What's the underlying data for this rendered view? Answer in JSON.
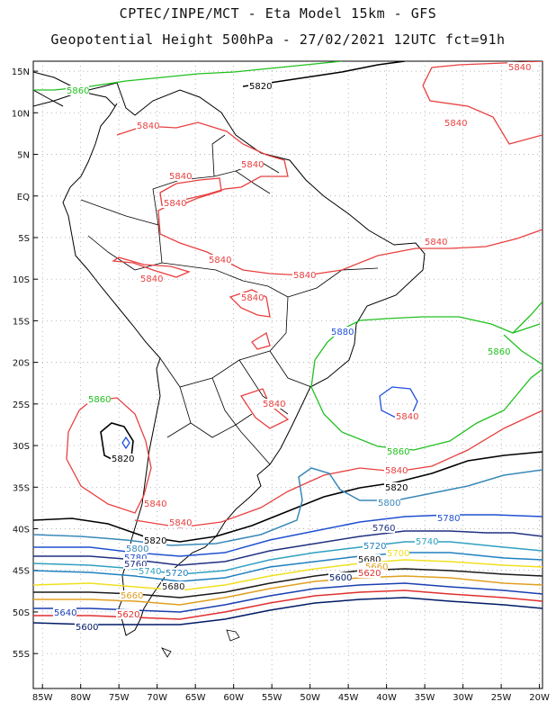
{
  "header": {
    "line1": "CPTEC/INPE/MCT -  Eta Model 15km - GFS",
    "line2": "Geopotential Height 500hPa - 27/02/2021 12UTC fct=91h"
  },
  "axes": {
    "lat_labels": [
      "15N",
      "10N",
      "5N",
      "EQ",
      "5S",
      "10S",
      "15S",
      "20S",
      "25S",
      "30S",
      "35S",
      "40S",
      "45S",
      "50S",
      "55S"
    ],
    "lat_values": [
      15,
      10,
      5,
      0,
      -5,
      -10,
      -15,
      -20,
      -25,
      -30,
      -35,
      -40,
      -45,
      -50,
      -55
    ],
    "lon_labels": [
      "85W",
      "80W",
      "75W",
      "70W",
      "65W",
      "60W",
      "55W",
      "50W",
      "45W",
      "40W",
      "35W",
      "30W",
      "25W",
      "20W"
    ],
    "lon_values": [
      -85,
      -80,
      -75,
      -70,
      -65,
      -60,
      -55,
      -50,
      -45,
      -40,
      -35,
      -30,
      -25,
      -20
    ],
    "grid": "dotted"
  },
  "contour_colors": {
    "5600": "#001a66",
    "5620": "#e03030",
    "5640": "#1a3fb0",
    "5660": "#e0a020",
    "5680": "#1a1a1a",
    "5700": "#f0e020",
    "5720": "#2080c0",
    "5740": "#30a0c0",
    "5760": "#203080",
    "5780": "#2050d0",
    "5800": "#3a88b8",
    "5820": "#000000",
    "5840": "#e84040",
    "5860": "#20c020",
    "5880": "#2050e0"
  },
  "contour_labels": [
    {
      "text": "5820",
      "color": "#000000"
    },
    {
      "text": "5860",
      "color": "#20c020"
    },
    {
      "text": "5840",
      "color": "#e84040"
    },
    {
      "text": "5840",
      "color": "#e84040"
    },
    {
      "text": "5840",
      "color": "#e84040"
    },
    {
      "text": "5840",
      "color": "#e84040"
    },
    {
      "text": "5840",
      "color": "#e84040"
    },
    {
      "text": "5840",
      "color": "#e84040"
    },
    {
      "text": "5840",
      "color": "#e84040"
    },
    {
      "text": "5840",
      "color": "#e84040"
    },
    {
      "text": "5840",
      "color": "#e84040"
    },
    {
      "text": "5840",
      "color": "#e84040"
    },
    {
      "text": "5840",
      "color": "#e84040"
    },
    {
      "text": "5840",
      "color": "#e84040"
    },
    {
      "text": "5860",
      "color": "#20c020"
    },
    {
      "text": "5860",
      "color": "#20c020"
    },
    {
      "text": "5880",
      "color": "#2050e0"
    },
    {
      "text": "5840",
      "color": "#e84040"
    },
    {
      "text": "5820",
      "color": "#000000"
    },
    {
      "text": "5860",
      "color": "#20c020"
    },
    {
      "text": "5840",
      "color": "#e84040"
    },
    {
      "text": "5820",
      "color": "#000000"
    },
    {
      "text": "5800",
      "color": "#3a88b8"
    },
    {
      "text": "5840",
      "color": "#e84040"
    },
    {
      "text": "5840",
      "color": "#e84040"
    },
    {
      "text": "5820",
      "color": "#000000"
    },
    {
      "text": "5780",
      "color": "#2050d0"
    },
    {
      "text": "5760",
      "color": "#203080"
    },
    {
      "text": "5740",
      "color": "#30a0c0"
    },
    {
      "text": "5720",
      "color": "#2080c0"
    },
    {
      "text": "5700",
      "color": "#f0e020"
    },
    {
      "text": "5680",
      "color": "#1a1a1a"
    },
    {
      "text": "5660",
      "color": "#e0a020"
    },
    {
      "text": "5620",
      "color": "#e03030"
    },
    {
      "text": "5600",
      "color": "#001a66"
    },
    {
      "text": "5800",
      "color": "#3a88b8"
    },
    {
      "text": "5780",
      "color": "#2050d0"
    },
    {
      "text": "5760",
      "color": "#203080"
    },
    {
      "text": "5740",
      "color": "#30a0c0"
    },
    {
      "text": "5720",
      "color": "#2080c0"
    },
    {
      "text": "5680",
      "color": "#1a1a1a"
    },
    {
      "text": "5660",
      "color": "#e0a020"
    },
    {
      "text": "5640",
      "color": "#1a3fb0"
    },
    {
      "text": "5620",
      "color": "#e03030"
    },
    {
      "text": "5600",
      "color": "#001a66"
    }
  ]
}
